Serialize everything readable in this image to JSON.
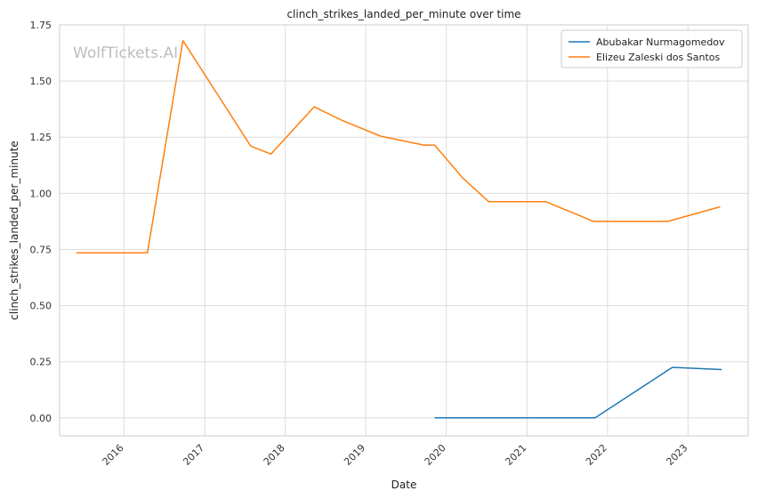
{
  "watermark": "WolfTickets.AI",
  "chart_data": {
    "type": "line",
    "title": "clinch_strikes_landed_per_minute over time",
    "xlabel": "Date",
    "ylabel": "clinch_strikes_landed_per_minute",
    "x_axis": {
      "type": "date",
      "range": [
        "2015-03-15",
        "2023-10-01"
      ],
      "ticks": [
        "2016-01-01",
        "2017-01-01",
        "2018-01-01",
        "2019-01-01",
        "2020-01-01",
        "2021-01-01",
        "2022-01-01",
        "2023-01-01"
      ],
      "tick_labels": [
        "2016",
        "2017",
        "2018",
        "2019",
        "2020",
        "2021",
        "2022",
        "2023"
      ]
    },
    "y_axis": {
      "range": [
        -0.08,
        1.75
      ],
      "ticks": [
        0.0,
        0.25,
        0.5,
        0.75,
        1.0,
        1.25,
        1.5,
        1.75
      ],
      "tick_labels": [
        "0.00",
        "0.25",
        "0.50",
        "0.75",
        "1.00",
        "1.25",
        "1.50",
        "1.75"
      ]
    },
    "grid": true,
    "legend_position": "top-right",
    "series": [
      {
        "name": "Abubakar Nurmagomedov",
        "color": "#1f77b4",
        "x": [
          "2019-11-09",
          "2021-11-06",
          "2022-10-22",
          "2023-06-03"
        ],
        "y": [
          0.0,
          0.0,
          0.225,
          0.215
        ]
      },
      {
        "name": "Elizeu Zaleski dos Santos",
        "color": "#ff7f0e",
        "x": [
          "2015-05-30",
          "2016-04-16",
          "2016-09-24",
          "2017-07-29",
          "2017-10-28",
          "2018-05-12",
          "2018-09-15",
          "2019-03-09",
          "2019-09-21",
          "2019-11-09",
          "2020-03-14",
          "2020-07-11",
          "2021-03-27",
          "2021-10-30",
          "2022-10-01",
          "2023-05-27"
        ],
        "y": [
          0.735,
          0.735,
          1.68,
          1.21,
          1.175,
          1.385,
          1.325,
          1.255,
          1.215,
          1.215,
          1.07,
          0.963,
          0.963,
          0.875,
          0.875,
          0.94
        ]
      }
    ]
  }
}
